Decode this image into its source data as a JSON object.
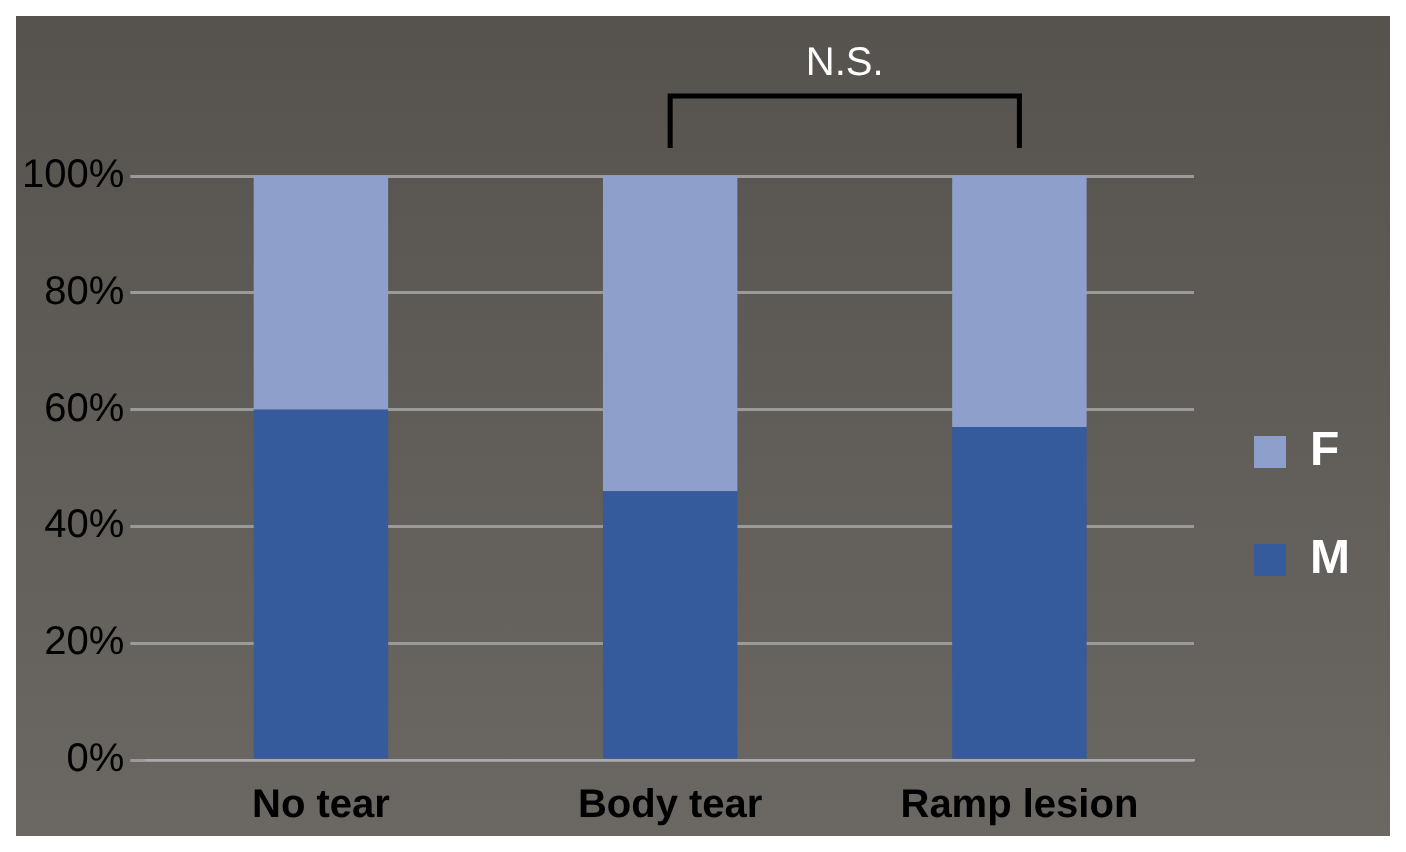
{
  "chart_data": {
    "type": "bar",
    "stacked": true,
    "categories": [
      "No tear",
      "Body tear",
      "Ramp lesion"
    ],
    "series": [
      {
        "name": "M",
        "color": "#355b9c",
        "values": [
          60,
          46,
          57
        ]
      },
      {
        "name": "F",
        "color": "#8f9fcb",
        "values": [
          40,
          54,
          43
        ]
      }
    ],
    "ylim": [
      0,
      100
    ],
    "yticks": [
      {
        "value": 0,
        "label": "0%"
      },
      {
        "value": 20,
        "label": "20%"
      },
      {
        "value": 40,
        "label": "40%"
      },
      {
        "value": 60,
        "label": "60%"
      },
      {
        "value": 80,
        "label": "80%"
      },
      {
        "value": 100,
        "label": "100%"
      }
    ],
    "grid": "y",
    "legend": "right",
    "annotations": [
      "N.S."
    ]
  }
}
